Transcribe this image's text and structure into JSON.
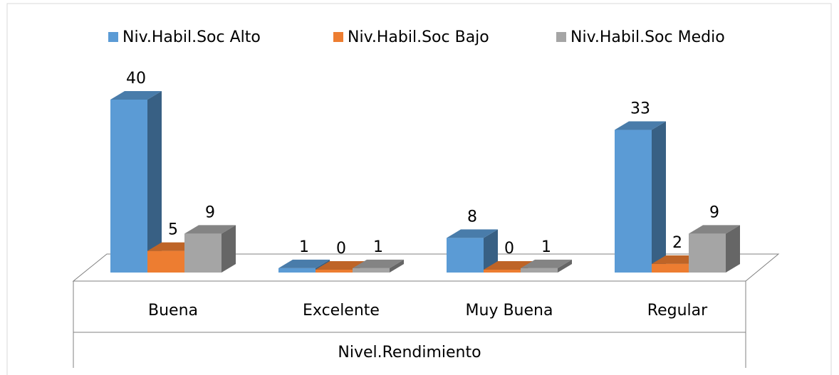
{
  "chart_data": {
    "type": "bar3d",
    "categories": [
      "Buena",
      "Excelente",
      "Muy Buena",
      "Regular"
    ],
    "x_label": "Nivel.Rendimiento",
    "series": [
      {
        "name": "Niv.Habil.Soc Alto",
        "color": "#5b9bd5",
        "values": [
          40,
          1,
          8,
          33
        ]
      },
      {
        "name": "Niv.Habil.Soc Bajo",
        "color": "#ed7d31",
        "values": [
          5,
          0,
          0,
          2
        ]
      },
      {
        "name": "Niv.Habil.Soc Medio",
        "color": "#a5a5a5",
        "values": [
          9,
          1,
          1,
          9
        ]
      }
    ]
  }
}
